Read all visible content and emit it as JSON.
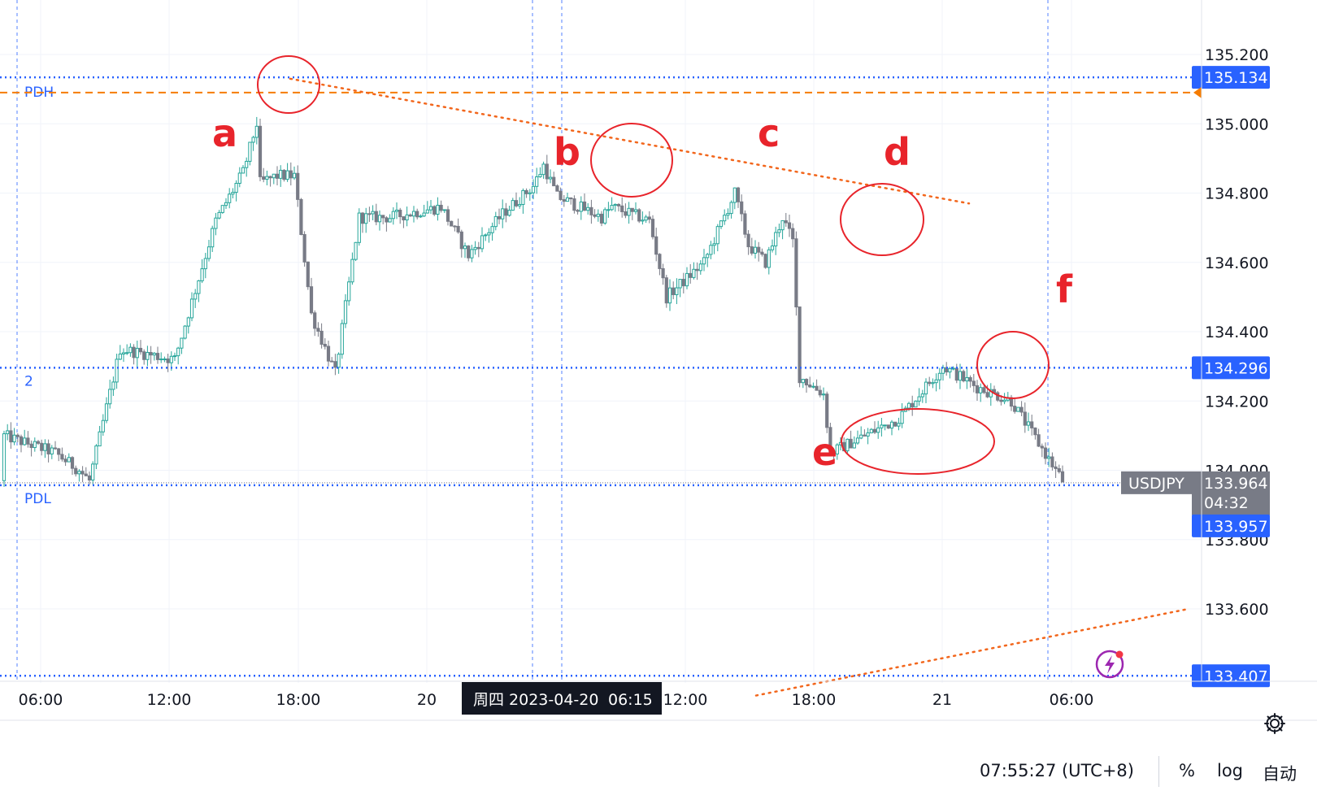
{
  "chart_data": {
    "type": "candlestick",
    "symbol": "USDJPY",
    "price_axis": {
      "ticks": [
        "135.200",
        "135.000",
        "134.800",
        "134.600",
        "134.400",
        "134.200",
        "134.000",
        "133.800",
        "133.600"
      ],
      "range": [
        133.38,
        135.39
      ]
    },
    "time_axis": {
      "ticks": [
        "06:00",
        "12:00",
        "18:00",
        "20",
        "12:00",
        "18:00",
        "21",
        "06:00"
      ]
    },
    "cursor_label": "周四 2023-04-20",
    "cursor_time": "06:15",
    "levels": [
      {
        "label": "PDH",
        "value": 135.134,
        "value_text": "135.134",
        "color": "#2962ff",
        "style": "dotted"
      },
      {
        "label": "",
        "value": 135.09,
        "value_text": "",
        "color": "#f57c00",
        "style": "dashed"
      },
      {
        "label": "2",
        "value": 134.296,
        "value_text": "134.296",
        "color": "#2962ff",
        "style": "dotted"
      },
      {
        "label": "PDL",
        "value": 133.957,
        "value_text": "133.957",
        "color": "#2962ff",
        "style": "dotted"
      },
      {
        "label": "",
        "value": 133.407,
        "value_text": "133.407",
        "color": "#2962ff",
        "style": "dotted"
      }
    ],
    "last_price": {
      "symbol": "USDJPY",
      "value": 133.964,
      "value_text": "133.964",
      "countdown": "04:32"
    },
    "annotations": [
      "a",
      "b",
      "c",
      "d",
      "e",
      "f"
    ],
    "candle_colors": {
      "up": "#26a69a",
      "down": "#787b86"
    },
    "trendline_color": "#f2661c",
    "circle_color": "#e8242b",
    "series": [
      {
        "start": 133.97,
        "waypoints": [
          [
            0,
            134.1
          ],
          [
            15,
            134.05
          ],
          [
            22,
            134.0
          ],
          [
            25,
            133.97
          ],
          [
            34,
            134.35
          ],
          [
            50,
            134.32
          ],
          [
            62,
            134.72
          ],
          [
            70,
            134.86
          ],
          [
            74,
            135.0
          ],
          [
            75,
            134.83
          ],
          [
            80,
            134.85
          ],
          [
            85,
            134.85
          ],
          [
            90,
            134.45
          ],
          [
            97,
            134.28
          ],
          [
            104,
            134.73
          ],
          [
            113,
            134.73
          ],
          [
            128,
            134.76
          ],
          [
            136,
            134.62
          ],
          [
            146,
            134.74
          ],
          [
            155,
            134.82
          ],
          [
            158,
            134.88
          ],
          [
            162,
            134.79
          ],
          [
            175,
            134.73
          ],
          [
            178,
            134.76
          ],
          [
            189,
            134.72
          ],
          [
            194,
            134.5
          ],
          [
            205,
            134.6
          ],
          [
            214,
            134.8
          ],
          [
            218,
            134.65
          ],
          [
            223,
            134.6
          ],
          [
            228,
            134.73
          ],
          [
            231,
            134.66
          ],
          [
            233,
            134.27
          ],
          [
            240,
            134.22
          ],
          [
            242,
            134.05
          ],
          [
            262,
            134.15
          ],
          [
            275,
            134.3
          ],
          [
            285,
            134.24
          ],
          [
            295,
            134.2
          ],
          [
            310,
            133.97
          ]
        ],
        "volatility": 0.035
      }
    ]
  },
  "footer": {
    "time": "07:55:27 (UTC+8)",
    "percent": "%",
    "log": "log",
    "auto": "自动"
  }
}
